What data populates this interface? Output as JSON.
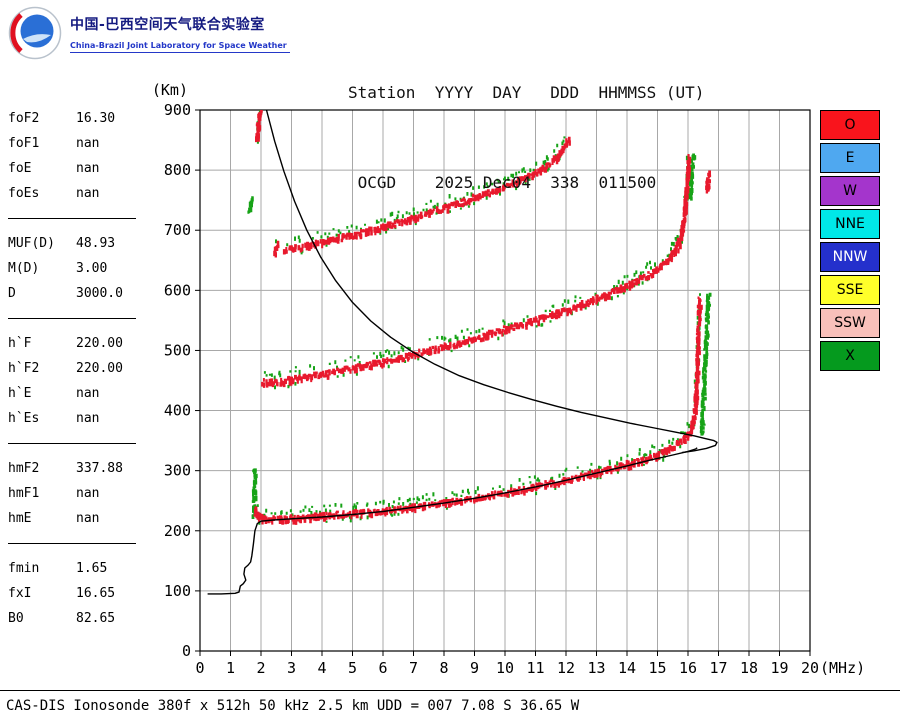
{
  "header": {
    "lab_title_cn": "中国-巴西空间天气联合实验室",
    "lab_subtitle_en": "China-Brazil Joint Laboratory for Space Weather",
    "station_labels_line": "Station  YYYY  DAY   DDD  HHMMSS (UT)",
    "station_values_line": " OCGD    2025 Dec04  338  011500"
  },
  "parameters": {
    "groups": [
      {
        "rows": [
          [
            "foF2",
            "16.30"
          ],
          [
            "foF1",
            "nan"
          ],
          [
            "foE",
            "nan"
          ],
          [
            "foEs",
            "nan"
          ]
        ]
      },
      {
        "rows": [
          [
            "MUF(D)",
            "48.93"
          ],
          [
            "M(D)",
            "3.00"
          ],
          [
            "D",
            "3000.0"
          ]
        ]
      },
      {
        "rows": [
          [
            "h`F",
            "220.00"
          ],
          [
            "h`F2",
            "220.00"
          ],
          [
            "h`E",
            "nan"
          ],
          [
            "h`Es",
            "nan"
          ]
        ]
      },
      {
        "rows": [
          [
            "hmF2",
            "337.88"
          ],
          [
            "hmF1",
            "nan"
          ],
          [
            "hmE",
            "nan"
          ]
        ]
      },
      {
        "rows": [
          [
            "fmin",
            "1.65"
          ],
          [
            "fxI",
            "16.65"
          ],
          [
            "B0",
            "82.65"
          ]
        ]
      }
    ]
  },
  "legend": {
    "items": [
      {
        "label": "O",
        "color": "#f9141c",
        "text": "#000000"
      },
      {
        "label": "E",
        "color": "#4fa8f0",
        "text": "#000000"
      },
      {
        "label": "W",
        "color": "#a435cc",
        "text": "#000000"
      },
      {
        "label": "NNE",
        "color": "#00e8e8",
        "text": "#000000"
      },
      {
        "label": "NNW",
        "color": "#2430cc",
        "text": "#ffffff"
      },
      {
        "label": "SSE",
        "color": "#ffff2a",
        "text": "#000000"
      },
      {
        "label": "SSW",
        "color": "#f8c0ba",
        "text": "#000000"
      },
      {
        "label": "X",
        "color": "#059a1e",
        "text": "#000000"
      }
    ]
  },
  "footer": {
    "text": "CAS-DIS Ionosonde 380f x 512h 50 kHz 2.5 km UDD = 007 7.08 S 36.65 W"
  },
  "chart_data": {
    "type": "scatter",
    "title": "Ionogram OCGD 2025 Dec04 338 011500 UT",
    "xlabel": "(MHz)",
    "ylabel": "(Km)",
    "xlim": [
      0,
      20
    ],
    "ylim": [
      0,
      900
    ],
    "x_ticks": [
      0,
      1,
      2,
      3,
      4,
      5,
      6,
      7,
      8,
      9,
      10,
      11,
      12,
      13,
      14,
      15,
      16,
      17,
      18,
      19,
      20
    ],
    "y_ticks": [
      0,
      100,
      200,
      300,
      400,
      500,
      600,
      700,
      800,
      900
    ],
    "grid": true,
    "legend_position": "right",
    "colors": {
      "o_trace": "#e8192d",
      "x_trace": "#17a317",
      "profile": "#000000",
      "grid": "#a8a8a8"
    },
    "traces": [
      {
        "name": "F-trace-1st-hop",
        "color": "mixed",
        "points": [
          [
            1.75,
            238
          ],
          [
            1.85,
            227
          ],
          [
            2.1,
            222
          ],
          [
            2.6,
            222
          ],
          [
            3.2,
            224
          ],
          [
            4,
            227
          ],
          [
            5,
            231
          ],
          [
            6,
            236
          ],
          [
            7,
            242
          ],
          [
            8,
            249
          ],
          [
            9,
            257
          ],
          [
            10,
            266
          ],
          [
            11,
            276
          ],
          [
            12,
            287
          ],
          [
            13,
            299
          ],
          [
            14,
            313
          ],
          [
            14.6,
            322
          ],
          [
            15,
            330
          ],
          [
            15.4,
            340
          ],
          [
            15.8,
            353
          ],
          [
            16.05,
            368
          ],
          [
            16.15,
            385
          ],
          [
            16.22,
            415
          ],
          [
            16.27,
            465
          ],
          [
            16.3,
            520
          ],
          [
            16.33,
            565
          ],
          [
            16.35,
            588
          ]
        ]
      },
      {
        "name": "F-trace-1st-hop-x-tail",
        "color": "green",
        "points": [
          [
            16.42,
            365
          ],
          [
            16.47,
            420
          ],
          [
            16.52,
            478
          ],
          [
            16.57,
            532
          ],
          [
            16.62,
            578
          ],
          [
            16.64,
            592
          ]
        ]
      },
      {
        "name": "F-trace-2nd-hop",
        "color": "mixed",
        "points": [
          [
            2.05,
            452
          ],
          [
            2.4,
            449
          ],
          [
            3,
            455
          ],
          [
            4,
            463
          ],
          [
            5,
            473
          ],
          [
            6,
            484
          ],
          [
            7,
            496
          ],
          [
            8,
            509
          ],
          [
            9,
            523
          ],
          [
            10,
            538
          ],
          [
            11,
            553
          ],
          [
            12,
            570
          ],
          [
            13,
            589
          ],
          [
            13.8,
            606
          ],
          [
            14.4,
            621
          ],
          [
            14.9,
            636
          ],
          [
            15.3,
            653
          ],
          [
            15.6,
            673
          ],
          [
            15.78,
            700
          ],
          [
            15.88,
            740
          ],
          [
            15.95,
            785
          ],
          [
            16.0,
            822
          ]
        ]
      },
      {
        "name": "F-trace-2nd-hop-x-tail",
        "color": "green",
        "points": [
          [
            16.02,
            755
          ],
          [
            16.08,
            795
          ],
          [
            16.14,
            828
          ]
        ]
      },
      {
        "name": "F-trace-3rd-hop",
        "color": "mixed",
        "points": [
          [
            2.75,
            670
          ],
          [
            3.5,
            677
          ],
          [
            4.3,
            686
          ],
          [
            5.2,
            697
          ],
          [
            6.1,
            710
          ],
          [
            7,
            724
          ],
          [
            8,
            740
          ],
          [
            9,
            757
          ],
          [
            9.9,
            773
          ],
          [
            10.6,
            788
          ],
          [
            11.2,
            804
          ],
          [
            11.6,
            820
          ],
          [
            11.9,
            840
          ],
          [
            12.05,
            852
          ]
        ]
      },
      {
        "name": "cluster-top-left",
        "color": "mixed",
        "points": [
          [
            1.83,
            856
          ],
          [
            1.87,
            874
          ],
          [
            1.92,
            893
          ],
          [
            1.96,
            900
          ]
        ]
      },
      {
        "name": "cluster-left-750",
        "color": "green",
        "points": [
          [
            1.6,
            737
          ],
          [
            1.64,
            756
          ]
        ]
      },
      {
        "name": "cluster-left-670",
        "color": "mixed",
        "points": [
          [
            2.42,
            664
          ],
          [
            2.5,
            680
          ]
        ]
      },
      {
        "name": "spur-fmin-vertical",
        "color": "green",
        "points": [
          [
            1.74,
            228
          ],
          [
            1.76,
            305
          ]
        ]
      },
      {
        "name": "spur-right-780",
        "color": "red",
        "points": [
          [
            16.6,
            768
          ],
          [
            16.63,
            796
          ]
        ]
      }
    ],
    "profile_line": [
      [
        0.25,
        95
      ],
      [
        0.7,
        95
      ],
      [
        1.15,
        96
      ],
      [
        1.28,
        98
      ],
      [
        1.32,
        108
      ],
      [
        1.42,
        112
      ],
      [
        1.5,
        118
      ],
      [
        1.44,
        128
      ],
      [
        1.47,
        138
      ],
      [
        1.58,
        143
      ],
      [
        1.66,
        148
      ],
      [
        1.7,
        158
      ],
      [
        1.75,
        178
      ],
      [
        1.8,
        200
      ],
      [
        1.88,
        212
      ],
      [
        2.0,
        216
      ],
      [
        2.4,
        218
      ],
      [
        3,
        220
      ],
      [
        4,
        223
      ],
      [
        5,
        227
      ],
      [
        6,
        232
      ],
      [
        7,
        239
      ],
      [
        8,
        246
      ],
      [
        9,
        254
      ],
      [
        10,
        263
      ],
      [
        11,
        273
      ],
      [
        12,
        284
      ],
      [
        13,
        296
      ],
      [
        14,
        308
      ],
      [
        14.8,
        318
      ],
      [
        15.5,
        326
      ],
      [
        16,
        332
      ],
      [
        16.25,
        336
      ],
      [
        16.3,
        338
      ]
    ],
    "transmission_curve": [
      [
        2.18,
        900
      ],
      [
        2.45,
        848
      ],
      [
        2.75,
        798
      ],
      [
        3.1,
        748
      ],
      [
        3.5,
        700
      ],
      [
        3.95,
        656
      ],
      [
        4.45,
        616
      ],
      [
        5.0,
        580
      ],
      [
        5.6,
        549
      ],
      [
        6.25,
        522
      ],
      [
        6.95,
        498
      ],
      [
        7.7,
        477
      ],
      [
        8.5,
        458
      ],
      [
        9.3,
        443
      ],
      [
        10.1,
        430
      ],
      [
        10.9,
        418
      ],
      [
        11.7,
        407
      ],
      [
        12.5,
        397
      ],
      [
        13.3,
        388
      ],
      [
        14.1,
        379
      ],
      [
        14.9,
        371
      ],
      [
        15.6,
        364
      ],
      [
        16.2,
        358
      ],
      [
        16.6,
        353
      ],
      [
        16.85,
        350
      ],
      [
        16.95,
        347
      ],
      [
        16.9,
        342
      ],
      [
        16.6,
        337
      ],
      [
        16.2,
        333
      ],
      [
        15.8,
        330
      ]
    ]
  }
}
